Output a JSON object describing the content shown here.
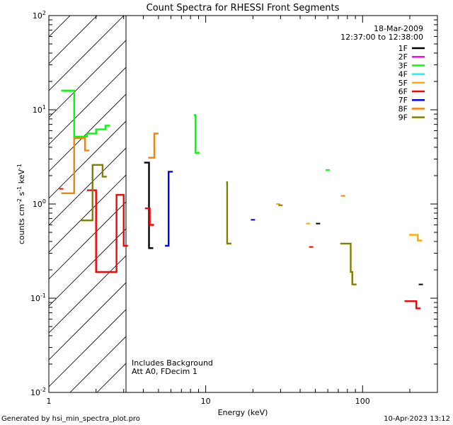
{
  "chart_data": {
    "type": "line",
    "title": "Count Spectra for RHESSI Front Segments",
    "xlabel": "Energy (keV)",
    "ylabel": {
      "base": "counts cm",
      "sup1": "-2",
      "mid1": " s",
      "sup2": "-1",
      "mid2": " keV",
      "sup3": "-1"
    },
    "xscale": "log",
    "yscale": "log",
    "xlim": [
      1,
      300
    ],
    "ylim": [
      0.01,
      100
    ],
    "x_ticks": [
      {
        "value": 1,
        "label": "1"
      },
      {
        "value": 10,
        "label": "10"
      },
      {
        "value": 100,
        "label": "100"
      }
    ],
    "y_ticks": [
      {
        "value": 0.01,
        "base": "10",
        "exp": "-2"
      },
      {
        "value": 0.1,
        "base": "10",
        "exp": "-1"
      },
      {
        "value": 1,
        "base": "10",
        "exp": "0"
      },
      {
        "value": 10,
        "base": "10",
        "exp": "1"
      },
      {
        "value": 100,
        "base": "10",
        "exp": "2"
      }
    ],
    "hatched_region": {
      "x": [
        1,
        3
      ]
    },
    "date": "18-Mar-2009",
    "time_range": "12:37:00 to 12:38:00",
    "annotations": [
      "Includes Background",
      "Att A0, FDecim 1"
    ],
    "series": [
      {
        "name": "1F",
        "color": "#000000",
        "points": [
          [
            4.05,
            2.75
          ],
          [
            4.35,
            0.34
          ],
          [
            52,
            0.62
          ],
          [
            235,
            0.14
          ]
        ]
      },
      {
        "name": "2F",
        "color": "#ff00ff",
        "points": []
      },
      {
        "name": "3F",
        "color": "#00ff00",
        "points": [
          [
            1.2,
            16
          ],
          [
            1.3,
            16
          ],
          [
            1.45,
            5.2
          ],
          [
            1.75,
            5.6
          ],
          [
            2.0,
            6.2
          ],
          [
            2.3,
            6.8
          ],
          [
            8.4,
            8.8
          ],
          [
            8.6,
            3.5
          ],
          [
            60,
            2.3
          ]
        ]
      },
      {
        "name": "4F",
        "color": "#00ffff",
        "points": []
      },
      {
        "name": "5F",
        "color": "#ffaa00",
        "points": [
          [
            29,
            1.0
          ],
          [
            45,
            0.62
          ],
          [
            75,
            1.22
          ],
          [
            198,
            0.47
          ],
          [
            225,
            0.41
          ]
        ]
      },
      {
        "name": "6F",
        "color": "#ff0000",
        "points": [
          [
            1.2,
            1.45
          ],
          [
            1.75,
            1.4
          ],
          [
            2.0,
            0.19
          ],
          [
            2.3,
            0.19
          ],
          [
            2.7,
            1.25
          ],
          [
            3.0,
            0.36
          ],
          [
            4.1,
            0.9
          ],
          [
            4.4,
            0.6
          ],
          [
            47,
            0.35
          ],
          [
            185,
            0.093
          ],
          [
            220,
            0.078
          ]
        ]
      },
      {
        "name": "7F",
        "color": "#0000ff",
        "points": [
          [
            5.5,
            0.36
          ],
          [
            5.8,
            2.2
          ],
          [
            20,
            0.68
          ]
        ]
      },
      {
        "name": "8F",
        "color": "#ff7f00",
        "points": [
          [
            1.2,
            1.3
          ],
          [
            1.45,
            5.0
          ],
          [
            1.7,
            3.7
          ],
          [
            4.3,
            3.1
          ],
          [
            4.7,
            5.6
          ],
          [
            75,
            1.22
          ]
        ]
      },
      {
        "name": "9F",
        "color": "#7f7f00",
        "points": [
          [
            1.6,
            0.67
          ],
          [
            1.9,
            2.6
          ],
          [
            2.2,
            1.95
          ],
          [
            13.5,
            1.7
          ],
          [
            13.7,
            0.38
          ],
          [
            30,
            0.97
          ],
          [
            72,
            0.38
          ],
          [
            84,
            0.19
          ],
          [
            86,
            0.14
          ]
        ]
      }
    ]
  },
  "footer": {
    "generated_by": "Generated by hsi_min_spectra_plot.pro",
    "timestamp": "10-Apr-2023 13:12"
  }
}
